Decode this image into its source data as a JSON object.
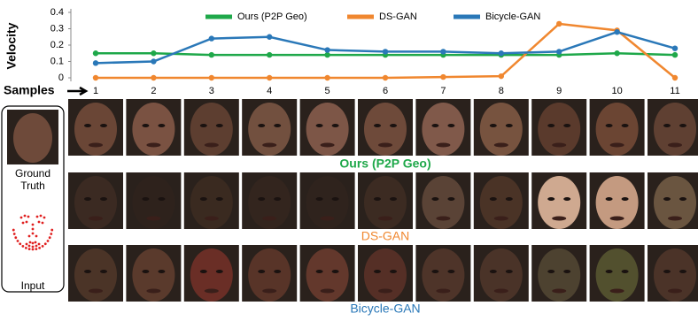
{
  "chart_data": {
    "type": "line",
    "y_label": "Velocity",
    "x_label": "Samples",
    "categories": [
      "1",
      "2",
      "3",
      "4",
      "5",
      "6",
      "7",
      "8",
      "9",
      "10",
      "11"
    ],
    "series": [
      {
        "name": "Ours (P2P Geo)",
        "color": "#1fa84a",
        "values": [
          0.15,
          0.15,
          0.14,
          0.14,
          0.14,
          0.14,
          0.14,
          0.14,
          0.14,
          0.15,
          0.14
        ]
      },
      {
        "name": "DS-GAN",
        "color": "#f0872f",
        "values": [
          0,
          0,
          0,
          0,
          0,
          0,
          0.005,
          0.01,
          0.33,
          0.29,
          0
        ]
      },
      {
        "name": "Bicycle-GAN",
        "color": "#2a78b8",
        "values": [
          0.09,
          0.1,
          0.24,
          0.25,
          0.17,
          0.16,
          0.16,
          0.15,
          0.16,
          0.28,
          0.18
        ]
      }
    ],
    "ylim": [
      0,
      0.4
    ],
    "yticks": [
      0,
      0.1,
      0.2,
      0.3,
      0.4
    ],
    "grid": false
  },
  "panel": {
    "ground_truth": "Ground Truth",
    "input": "Input"
  }
}
